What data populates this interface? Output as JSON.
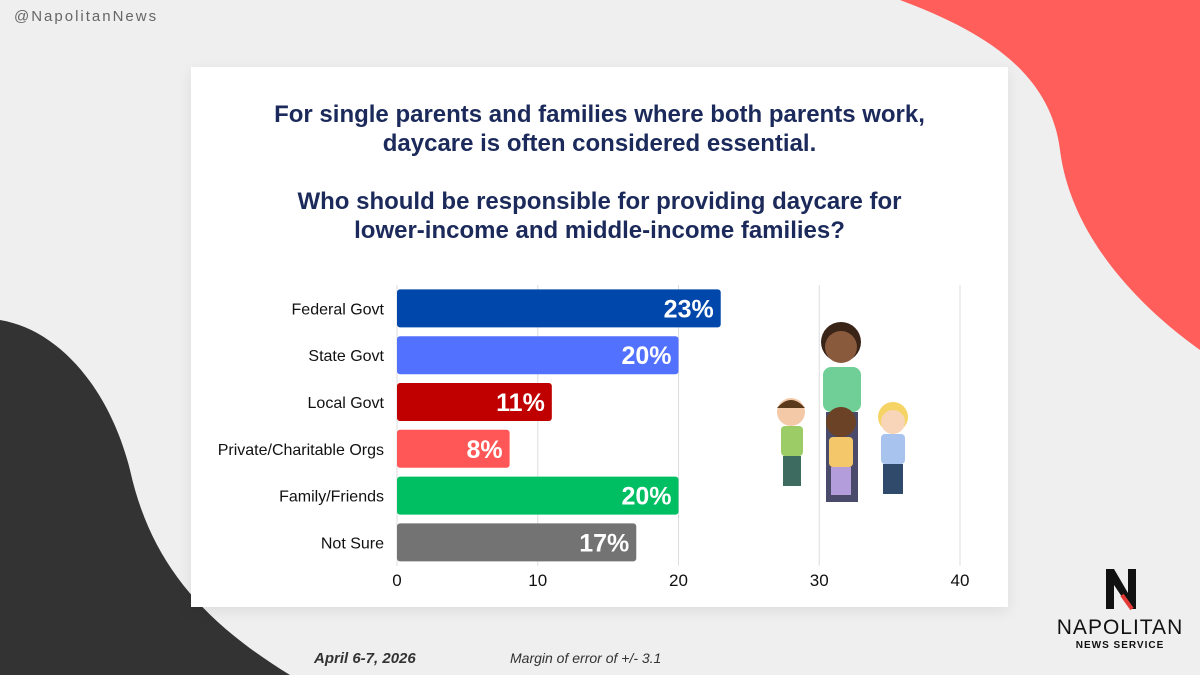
{
  "handle": "@NapolitanNews",
  "title_lines": [
    "For single parents and families where both parents work,",
    "daycare is often considered essential."
  ],
  "question_lines": [
    "Who should be responsible for providing daycare for",
    "lower-income and middle-income families?"
  ],
  "chart_data": {
    "type": "bar",
    "orientation": "horizontal",
    "categories": [
      "Federal Govt",
      "State Govt",
      "Local Govt",
      "Private/Charitable Orgs",
      "Family/Friends",
      "Not Sure"
    ],
    "values": [
      23,
      20,
      11,
      8,
      20,
      17
    ],
    "data_labels": [
      "23%",
      "20%",
      "11%",
      "8%",
      "20%",
      "17%"
    ],
    "colors": [
      "#0047ab",
      "#5271ff",
      "#c00000",
      "#ff5757",
      "#00bf63",
      "#737373"
    ],
    "xlim": [
      0,
      40
    ],
    "xticks": [
      "0",
      "10",
      "20",
      "30",
      "40"
    ],
    "grid": true,
    "xlabel": "",
    "ylabel": ""
  },
  "footer": {
    "date": "April 6-7, 2026",
    "margin": "Margin of error of +/- 3.1"
  },
  "logo": {
    "name": "NAPOLITAN",
    "sub": "NEWS SERVICE"
  },
  "colors": {
    "accent_red": "#ff5e5b",
    "dark": "#333333",
    "title": "#1b2a5a"
  }
}
